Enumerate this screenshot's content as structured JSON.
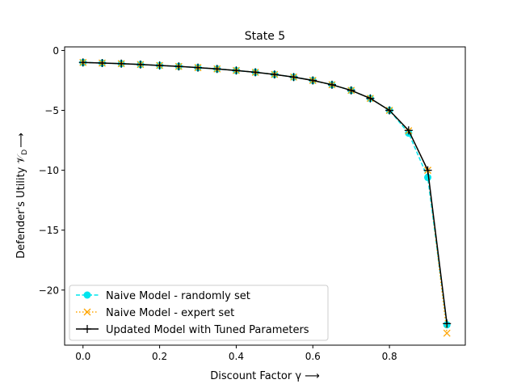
{
  "chart_data": {
    "type": "line",
    "title": "State 5",
    "xlabel": "Discount Factor γ ⟶",
    "ylabel": "Defender's Utility 𝒱",
    "ylabel_sub": "D",
    "ylabel_arrow": "⟶",
    "xlim": [
      -0.048,
      0.998
    ],
    "ylim": [
      -24.6,
      0.3
    ],
    "x_ticks": [
      0.0,
      0.2,
      0.4,
      0.6,
      0.8
    ],
    "x_tick_labels": [
      "0.0",
      "0.2",
      "0.4",
      "0.6",
      "0.8"
    ],
    "y_ticks": [
      0,
      -5,
      -10,
      -15,
      -20
    ],
    "y_tick_labels": [
      "0",
      "−5",
      "−10",
      "−15",
      "−20"
    ],
    "grid": false,
    "legend_position": "lower-left",
    "x": [
      0.0,
      0.05,
      0.1,
      0.15,
      0.2,
      0.25,
      0.3,
      0.35,
      0.4,
      0.45,
      0.5,
      0.55,
      0.6,
      0.65,
      0.7,
      0.75,
      0.8,
      0.85,
      0.9,
      0.95
    ],
    "series": [
      {
        "name": "Naive Model - randomly set",
        "color": "#00e5ee",
        "style": "dashed",
        "marker": "circle",
        "values": [
          -1.0,
          -1.05,
          -1.1,
          -1.17,
          -1.25,
          -1.33,
          -1.43,
          -1.54,
          -1.67,
          -1.82,
          -2.0,
          -2.22,
          -2.5,
          -2.86,
          -3.33,
          -4.0,
          -5.0,
          -6.9,
          -10.6,
          -22.9
        ]
      },
      {
        "name": "Naive Model - expert set",
        "color": "#ffa500",
        "style": "dotted",
        "marker": "x",
        "values": [
          -1.0,
          -1.05,
          -1.1,
          -1.17,
          -1.25,
          -1.33,
          -1.43,
          -1.54,
          -1.67,
          -1.82,
          -2.0,
          -2.22,
          -2.5,
          -2.86,
          -3.33,
          -4.0,
          -5.0,
          -6.7,
          -10.0,
          -23.6
        ]
      },
      {
        "name": "Updated Model with Tuned Parameters",
        "color": "#000000",
        "style": "solid",
        "marker": "plus",
        "values": [
          -1.0,
          -1.05,
          -1.1,
          -1.17,
          -1.25,
          -1.33,
          -1.43,
          -1.54,
          -1.67,
          -1.82,
          -2.0,
          -2.22,
          -2.5,
          -2.86,
          -3.33,
          -4.0,
          -5.0,
          -6.67,
          -10.0,
          -22.8
        ]
      }
    ]
  }
}
